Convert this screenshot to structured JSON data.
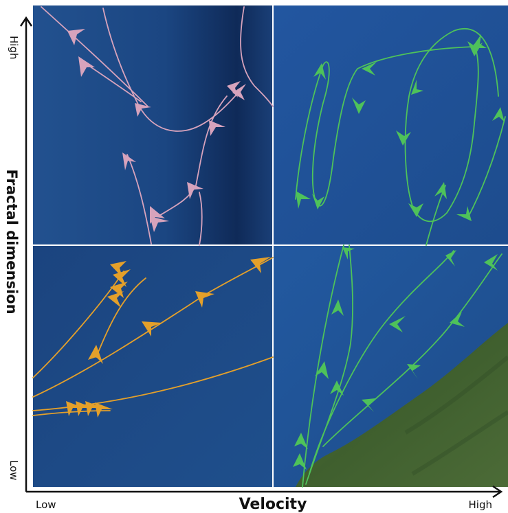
{
  "axes": {
    "y_label": "Fractal dimension",
    "y_high": "High",
    "y_low": "Low",
    "x_label": "Velocity",
    "x_low": "Low",
    "x_high": "High"
  },
  "colors": {
    "panel_top_left": "#1d4a86",
    "panel_dark_band": "#0f2a55",
    "panel_blue": "#1f4f8f",
    "land_green": "#4a6a35",
    "trajectory_pink": "#d7a3bc",
    "trajectory_green": "#4ec25a",
    "trajectory_orange": "#e4a02a",
    "grid_divider": "#ffffff",
    "axis": "#111111"
  },
  "quadrants": [
    {
      "position": "top-left",
      "trajectory_color": "pink",
      "background": "deep water"
    },
    {
      "position": "top-right",
      "trajectory_color": "green",
      "background": "water"
    },
    {
      "position": "bottom-left",
      "trajectory_color": "orange",
      "background": "water"
    },
    {
      "position": "bottom-right",
      "trajectory_color": "green",
      "background": "water and land"
    }
  ]
}
